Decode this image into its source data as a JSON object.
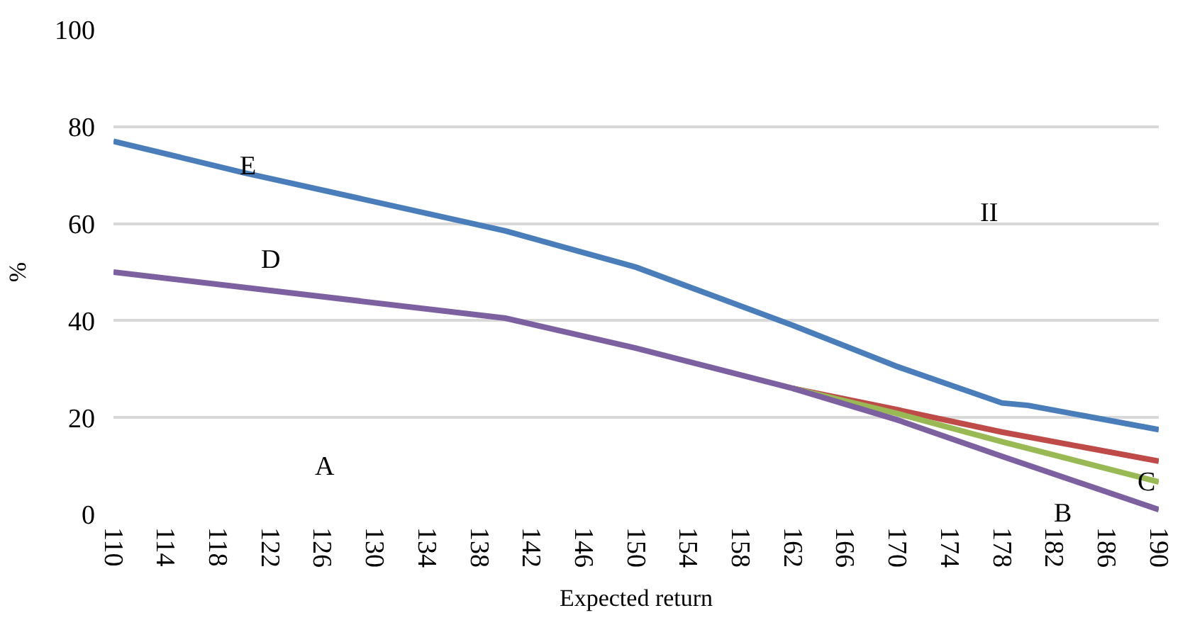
{
  "chart_data": {
    "type": "line",
    "xlabel": "Expected return",
    "ylabel": "%",
    "xlim": [
      110,
      190
    ],
    "xticks": [
      110,
      114,
      118,
      122,
      126,
      130,
      134,
      138,
      142,
      146,
      150,
      154,
      158,
      162,
      166,
      170,
      174,
      178,
      182,
      186,
      190
    ],
    "ylim": [
      0,
      100
    ],
    "yticks": [
      0,
      20,
      40,
      60,
      80,
      100
    ],
    "grid": "y",
    "marker": "none",
    "line_style": "solid",
    "series": [
      {
        "color": "#4a7ebb",
        "x": [
          110,
          120,
          140,
          150,
          162,
          170,
          178,
          180,
          190
        ],
        "values": [
          77,
          70.5,
          58.5,
          51,
          39,
          30.5,
          23,
          22.5,
          17.5
        ]
      },
      {
        "color": "#be4b48",
        "x": [
          162,
          170,
          178,
          190
        ],
        "values": [
          26,
          21.6,
          17,
          11
        ]
      },
      {
        "color": "#98b954",
        "x": [
          162,
          170,
          178,
          190
        ],
        "values": [
          26,
          20.8,
          15,
          6.7
        ]
      },
      {
        "color": "#7d60a0",
        "x": [
          110,
          140,
          150,
          162,
          170,
          178,
          190
        ],
        "values": [
          50,
          40.5,
          34.3,
          26,
          19.5,
          12,
          1
        ]
      }
    ],
    "annotations": [
      "E",
      "D",
      "A",
      "II",
      "C",
      "B"
    ]
  }
}
